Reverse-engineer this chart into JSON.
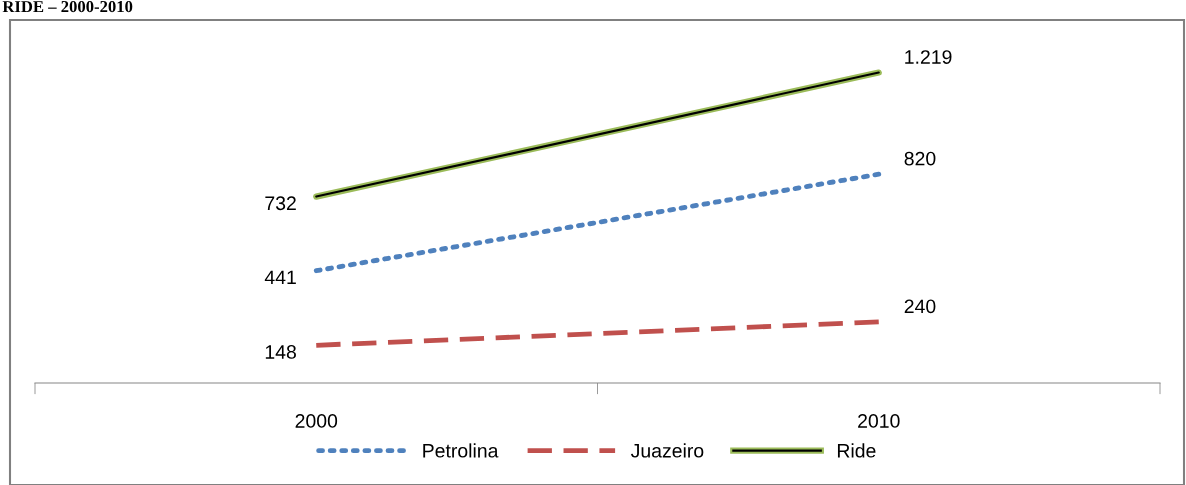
{
  "chart_data": {
    "type": "line",
    "title": "RIDE – 2000-2010",
    "categories": [
      "2000",
      "2010"
    ],
    "tick_labels": "x",
    "legend": "bottom",
    "grid": false,
    "series": [
      {
        "name": "Petrolina",
        "color": "#4f81bd",
        "line_style": "dotted",
        "values": [
          441,
          820
        ],
        "value_labels": [
          "441",
          "820"
        ]
      },
      {
        "name": "Juazeiro",
        "color": "#c0504d",
        "line_style": "dashed",
        "values": [
          148,
          240
        ],
        "value_labels": [
          "148",
          "240"
        ]
      },
      {
        "name": "Ride",
        "color": "#9bbb59",
        "line_style": "solid",
        "values": [
          732,
          1219
        ],
        "value_labels": [
          "732",
          "1.219"
        ]
      }
    ]
  }
}
